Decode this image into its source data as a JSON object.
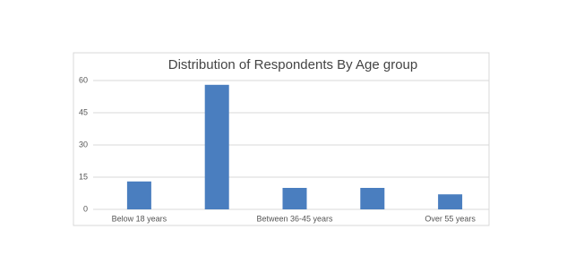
{
  "chart_data": {
    "type": "bar",
    "title": "Distribution of Respondents By Age group",
    "categories": [
      "Below 18 years",
      null,
      "Between 36-45 years",
      null,
      "Over 55 years"
    ],
    "values": [
      13,
      58,
      10,
      10,
      7
    ],
    "color": "#4a7ebf",
    "ylim": [
      0,
      60
    ],
    "yticks": [
      0,
      15,
      30,
      45,
      60
    ],
    "grid": true
  }
}
